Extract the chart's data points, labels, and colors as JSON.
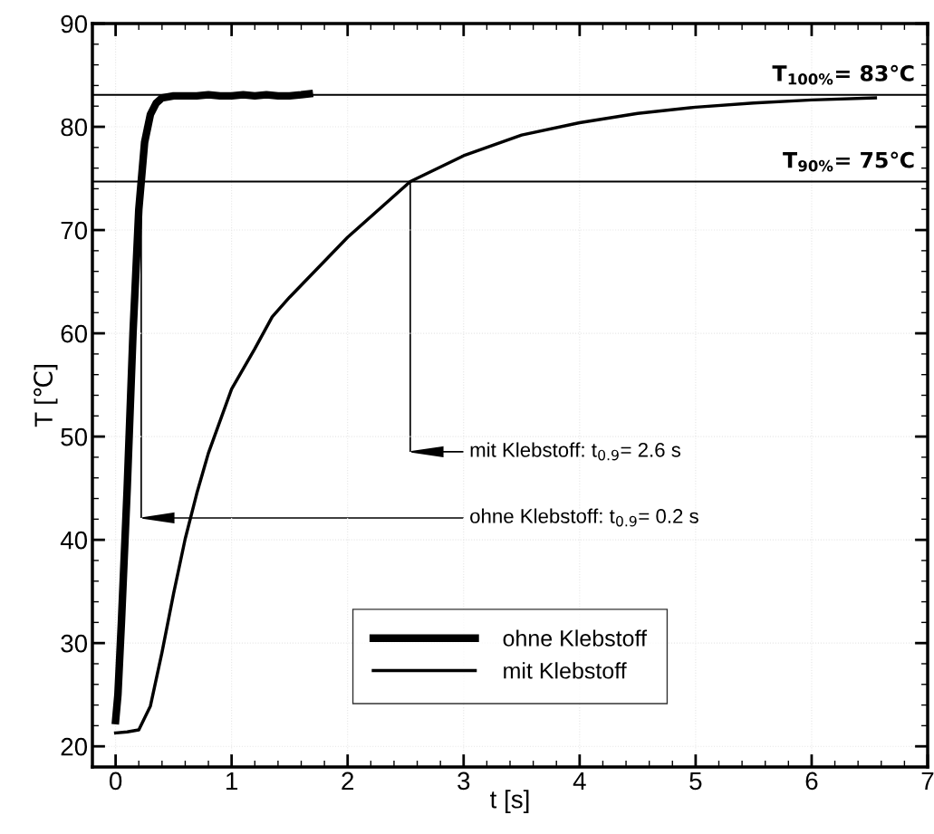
{
  "chart_data": {
    "type": "line",
    "xlabel": "t [s]",
    "ylabel": "T [℃]",
    "xlim": [
      -0.2,
      7
    ],
    "ylim": [
      18,
      90
    ],
    "xticks": [
      0,
      1,
      2,
      3,
      4,
      5,
      6,
      7
    ],
    "yticks": [
      20,
      30,
      40,
      50,
      60,
      70,
      80,
      90
    ],
    "grid": true,
    "legend": "bottom",
    "marker": "none",
    "line_style": "solid",
    "series": [
      {
        "name": "ohne Klebstoff",
        "color": "#000000",
        "x": [
          0,
          0.02,
          0.05,
          0.1,
          0.15,
          0.2,
          0.25,
          0.3,
          0.35,
          0.4,
          0.5,
          0.6,
          0.7,
          0.8,
          0.9,
          1.0,
          1.1,
          1.2,
          1.3,
          1.4,
          1.5,
          1.6,
          1.67
        ],
        "values": [
          22.5,
          25,
          32,
          45,
          60,
          72,
          78.5,
          81.2,
          82.3,
          82.8,
          83,
          83,
          83,
          83.1,
          83,
          83,
          83.1,
          83,
          83.1,
          83,
          83,
          83.1,
          83.2
        ]
      },
      {
        "name": "mit Klebstoff",
        "color": "#000000",
        "x": [
          0,
          0.1,
          0.2,
          0.3,
          0.4,
          0.5,
          0.6,
          0.7,
          0.8,
          1.0,
          1.2,
          1.35,
          1.5,
          2.0,
          2.54,
          3.0,
          3.5,
          4.0,
          4.5,
          5.0,
          5.5,
          6.0,
          6.55
        ],
        "values": [
          21.3,
          21.4,
          21.6,
          23.9,
          29.1,
          34.8,
          40.1,
          44.5,
          48.4,
          54.6,
          58.5,
          61.6,
          63.5,
          69.3,
          74.7,
          77.2,
          79.2,
          80.4,
          81.3,
          81.9,
          82.3,
          82.6,
          82.8
        ]
      }
    ],
    "ref_lines": [
      {
        "axis": "y",
        "value": 83.1,
        "label": "T$_{100%}$= 83℃"
      },
      {
        "axis": "y",
        "value": 74.7,
        "label": "T$_{90%}$= 75℃"
      }
    ],
    "annotations": [
      "mit Klebstoff: t$_{0.9}$= 2.6 s",
      "ohne Klebstoff: t$_{0.9}$= 0.2 s"
    ]
  }
}
